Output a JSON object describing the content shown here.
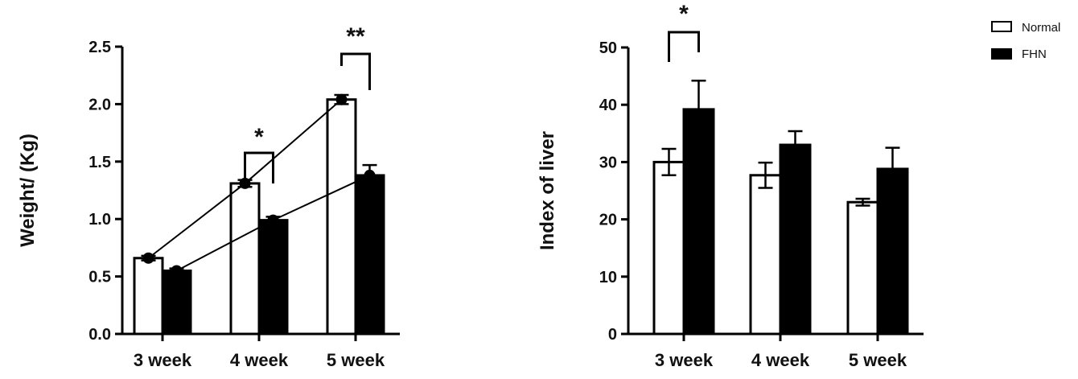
{
  "colors": {
    "normal": "#ffffff",
    "fhn": "#000000",
    "stroke": "#000000"
  },
  "legend": {
    "items": [
      {
        "label": "Normal",
        "swatch": "normal"
      },
      {
        "label": "FHN",
        "swatch": "fhn"
      }
    ]
  },
  "chart_data": [
    {
      "type": "bar",
      "title": "",
      "xlabel": "",
      "ylabel": "Weight/ (Kg)",
      "ylim": [
        0,
        2.5
      ],
      "yticks": [
        "0.0",
        "0.5",
        "1.0",
        "1.5",
        "2.0",
        "2.5"
      ],
      "categories": [
        "3 week",
        "4 week",
        "5 week"
      ],
      "series": [
        {
          "name": "Normal",
          "values": [
            0.66,
            1.31,
            2.04
          ],
          "errors": [
            0.02,
            0.03,
            0.04
          ]
        },
        {
          "name": "FHN",
          "values": [
            0.55,
            0.99,
            1.38
          ],
          "errors": [
            0.02,
            0.03,
            0.09
          ]
        }
      ],
      "trend_lines": true,
      "significance": [
        {
          "category": "4 week",
          "label": "*"
        },
        {
          "category": "5 week",
          "label": "**"
        }
      ]
    },
    {
      "type": "bar",
      "title": "",
      "xlabel": "",
      "ylabel": "Index of liver",
      "ylim": [
        0,
        50
      ],
      "yticks": [
        "0",
        "10",
        "20",
        "30",
        "40",
        "50"
      ],
      "categories": [
        "3 week",
        "4 week",
        "5 week"
      ],
      "series": [
        {
          "name": "Normal",
          "values": [
            30.0,
            27.7,
            23.0
          ],
          "errors": [
            2.3,
            2.2,
            0.6
          ]
        },
        {
          "name": "FHN",
          "values": [
            39.2,
            33.0,
            28.8
          ],
          "errors": [
            5.0,
            2.4,
            3.7
          ]
        }
      ],
      "trend_lines": false,
      "significance": [
        {
          "category": "3 week",
          "label": "*"
        }
      ]
    }
  ]
}
